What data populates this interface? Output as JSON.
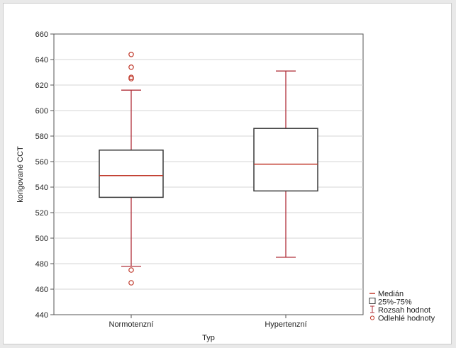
{
  "chart_data": {
    "type": "boxplot",
    "xlabel": "Typ",
    "ylabel": "korigované CCT",
    "ylim": [
      440,
      660
    ],
    "yticks": [
      440,
      460,
      480,
      500,
      520,
      540,
      560,
      580,
      600,
      620,
      640,
      660
    ],
    "categories": [
      "Normotenzní",
      "Hypertenzní"
    ],
    "boxes": [
      {
        "category": "Normotenzní",
        "whisker_low": 478,
        "q1": 532,
        "median": 549,
        "q3": 569,
        "whisker_high": 616,
        "outliers": [
          644,
          634,
          626,
          625,
          475,
          465
        ]
      },
      {
        "category": "Hypertenzní",
        "whisker_low": 485,
        "q1": 537,
        "median": 558,
        "q3": 586,
        "whisker_high": 631,
        "outliers": []
      }
    ],
    "grid": true,
    "legend_position": "bottom-right",
    "legend": [
      {
        "symbol": "median-line",
        "label": "Medián"
      },
      {
        "symbol": "box",
        "label": "25%-75%"
      },
      {
        "symbol": "whisker",
        "label": "Rozsah hodnot"
      },
      {
        "symbol": "outlier",
        "label": "Odlehlé hodnoty"
      }
    ],
    "colors": {
      "box": "#3a3a3a",
      "median": "#c0392b",
      "whisker": "#b0303a",
      "outlier": "#c0392b",
      "grid": "#d4d4d4"
    }
  }
}
